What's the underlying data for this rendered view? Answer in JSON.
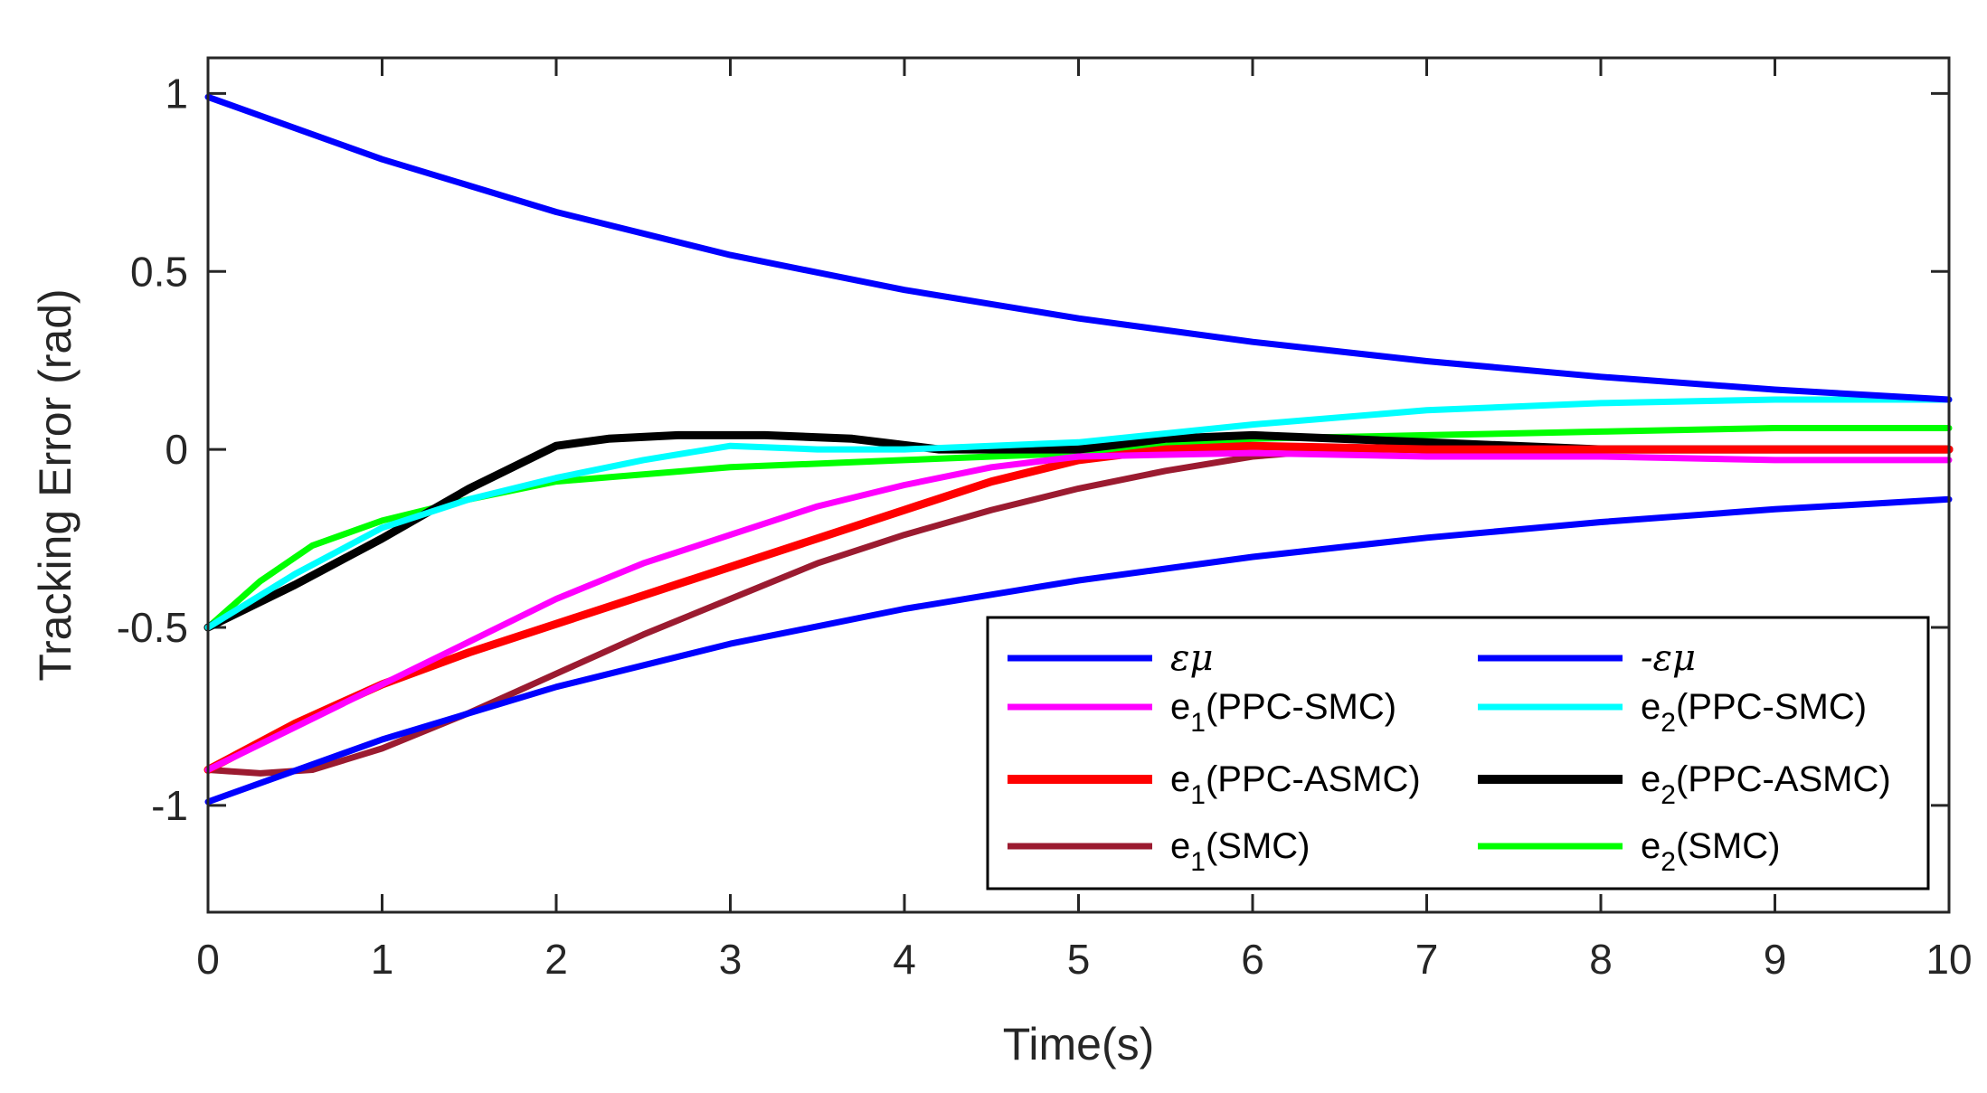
{
  "chart_data": {
    "type": "line",
    "title": "",
    "xlabel": "Time(s)",
    "ylabel": "Tracking Error (rad)",
    "xlim": [
      0,
      10
    ],
    "ylim": [
      -1.3,
      1.1
    ],
    "xticks": [
      "0",
      "1",
      "2",
      "3",
      "4",
      "5",
      "6",
      "7",
      "8",
      "9",
      "10"
    ],
    "yticks": [
      "1",
      "0.5",
      "0",
      "-0.5",
      "-1"
    ],
    "legend_position": "bottom-right",
    "series": [
      {
        "name": "εμ",
        "label_main": "εμ",
        "label_sub": "",
        "label_suffix": "",
        "color": "#0000ff",
        "x": [
          0,
          1,
          2,
          3,
          4,
          5,
          6,
          7,
          8,
          9,
          10
        ],
        "y": [
          0.99,
          0.815,
          0.667,
          0.546,
          0.448,
          0.368,
          0.302,
          0.248,
          0.204,
          0.168,
          0.14
        ]
      },
      {
        "name": "-εμ",
        "label_main": "-εμ",
        "label_sub": "",
        "label_suffix": "",
        "color": "#0000ff",
        "x": [
          0,
          1,
          2,
          3,
          4,
          5,
          6,
          7,
          8,
          9,
          10
        ],
        "y": [
          -0.99,
          -0.815,
          -0.667,
          -0.546,
          -0.448,
          -0.368,
          -0.302,
          -0.248,
          -0.204,
          -0.168,
          -0.14
        ]
      },
      {
        "name": "e1(PPC-SMC)",
        "label_main": "e",
        "label_sub": "1",
        "label_suffix": "(PPC-SMC)",
        "color": "#ff00ff",
        "x": [
          0,
          0.5,
          1,
          1.5,
          2,
          2.5,
          3,
          3.5,
          4,
          4.5,
          5,
          6,
          7,
          8,
          9,
          10
        ],
        "y": [
          -0.9,
          -0.78,
          -0.66,
          -0.54,
          -0.42,
          -0.32,
          -0.24,
          -0.16,
          -0.1,
          -0.05,
          -0.02,
          -0.01,
          -0.02,
          -0.02,
          -0.03,
          -0.03
        ]
      },
      {
        "name": "e2(PPC-SMC)",
        "label_main": "e",
        "label_sub": "2",
        "label_suffix": "(PPC-SMC)",
        "color": "#00ffff",
        "x": [
          0,
          0.5,
          1,
          1.5,
          2,
          2.5,
          3,
          3.5,
          4,
          5,
          6,
          7,
          8,
          9,
          10
        ],
        "y": [
          -0.5,
          -0.35,
          -0.22,
          -0.14,
          -0.08,
          -0.03,
          0.01,
          0.0,
          0.0,
          0.02,
          0.07,
          0.11,
          0.13,
          0.14,
          0.14
        ]
      },
      {
        "name": "e1(PPC-ASMC)",
        "label_main": "e",
        "label_sub": "1",
        "label_suffix": "(PPC-ASMC)",
        "color": "#ff0000",
        "x": [
          0,
          0.5,
          1,
          1.5,
          2,
          2.5,
          3,
          3.5,
          4,
          4.5,
          5,
          5.5,
          6,
          7,
          8,
          9,
          10
        ],
        "y": [
          -0.9,
          -0.77,
          -0.66,
          -0.57,
          -0.49,
          -0.41,
          -0.33,
          -0.25,
          -0.17,
          -0.09,
          -0.03,
          0.0,
          0.01,
          0.0,
          0.0,
          0.0,
          0.0
        ]
      },
      {
        "name": "e2(PPC-ASMC)",
        "label_main": "e",
        "label_sub": "2",
        "label_suffix": "(PPC-ASMC)",
        "color": "#000000",
        "x": [
          0,
          0.5,
          1,
          1.5,
          2,
          2.3,
          2.7,
          3.2,
          3.7,
          4.2,
          5,
          5.5,
          6,
          6.5,
          7,
          8,
          9,
          10
        ],
        "y": [
          -0.5,
          -0.38,
          -0.25,
          -0.11,
          0.01,
          0.03,
          0.04,
          0.04,
          0.03,
          0.0,
          0.0,
          0.03,
          0.04,
          0.03,
          0.02,
          0.0,
          0.0,
          0.0
        ]
      },
      {
        "name": "e1(SMC)",
        "label_main": "e",
        "label_sub": "1",
        "label_suffix": "(SMC)",
        "color": "#9b1b30",
        "x": [
          0,
          0.3,
          0.6,
          1,
          1.5,
          2,
          2.5,
          3,
          3.5,
          4,
          4.5,
          5,
          5.5,
          6,
          6.5,
          7,
          8,
          9,
          10
        ],
        "y": [
          -0.9,
          -0.91,
          -0.9,
          -0.84,
          -0.74,
          -0.63,
          -0.52,
          -0.42,
          -0.32,
          -0.24,
          -0.17,
          -0.11,
          -0.06,
          -0.02,
          0.0,
          0.0,
          0.0,
          0.0,
          0.0
        ]
      },
      {
        "name": "e2(SMC)",
        "label_main": "e",
        "label_sub": "2",
        "label_suffix": "(SMC)",
        "color": "#00ff00",
        "x": [
          0,
          0.3,
          0.6,
          1,
          1.5,
          2,
          3,
          4,
          5,
          5.5,
          6,
          7,
          8,
          9,
          10
        ],
        "y": [
          -0.5,
          -0.37,
          -0.27,
          -0.2,
          -0.14,
          -0.09,
          -0.05,
          -0.03,
          -0.01,
          0.01,
          0.03,
          0.04,
          0.05,
          0.06,
          0.06
        ]
      }
    ]
  }
}
